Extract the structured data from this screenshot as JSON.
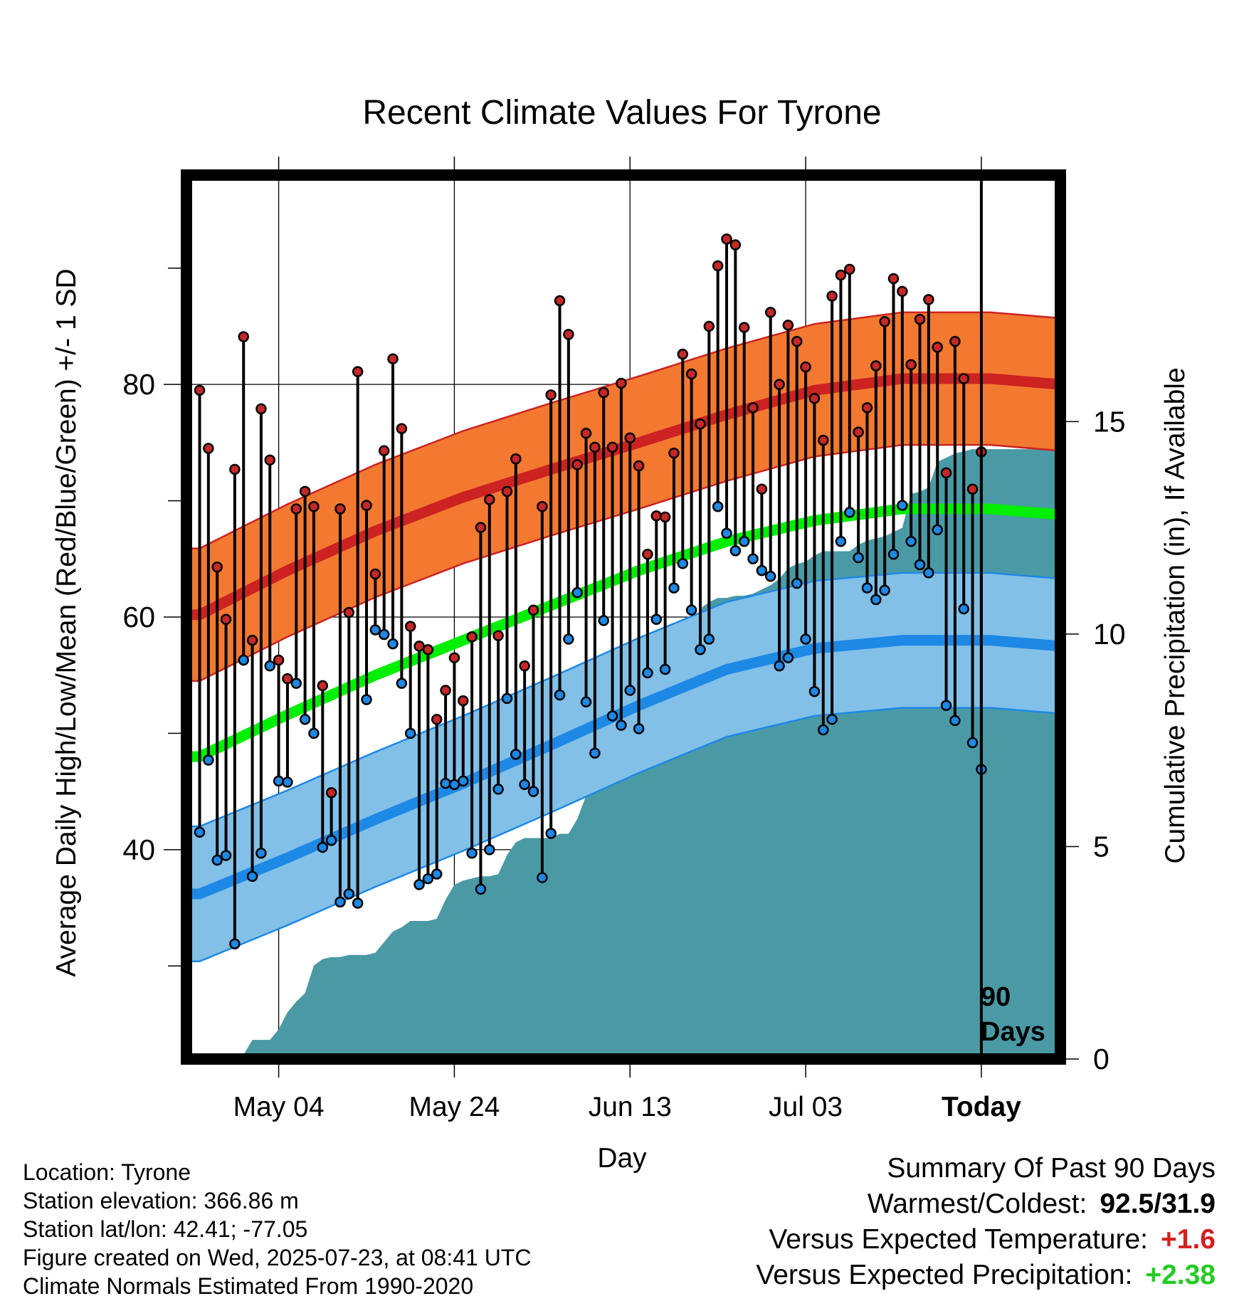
{
  "chart_data": {
    "type": "line",
    "title": "Recent Climate Values For Tyrone",
    "xlabel": "Day",
    "ylabel": "Average Daily High/Low/Mean (Red/Blue/Green) +/- 1 SD",
    "y2label": "Cumulative Precipitation (in), If Available",
    "x_tick_labels": [
      "May 04",
      "May 24",
      "Jun 13",
      "Jul 03",
      "Today"
    ],
    "x_tick_days": [
      9,
      29,
      49,
      69,
      89
    ],
    "x_range_days": [
      -1.5,
      98
    ],
    "ylim": [
      22,
      98
    ],
    "y_ticks": [
      30,
      40,
      50,
      60,
      70,
      80,
      90
    ],
    "y_tick_labels": [
      "40",
      "60",
      "80"
    ],
    "y2lim": [
      0,
      20.8
    ],
    "y2_tick_labels": [
      "0",
      "5",
      "10",
      "15"
    ],
    "y2_ticks": [
      0,
      5,
      10,
      15
    ],
    "grid": true,
    "today_marker_label": [
      "90",
      "Days"
    ],
    "day_start": "2025-04-25",
    "series": [
      {
        "name": "Daily High",
        "color": "#cc2222",
        "values": [
          79.5,
          74.5,
          64.3,
          59.8,
          72.7,
          84.1,
          58.0,
          77.9,
          73.5,
          56.3,
          54.7,
          69.3,
          70.8,
          69.5,
          54.1,
          44.9,
          69.3,
          60.4,
          81.1,
          69.6,
          63.7,
          74.3,
          82.2,
          76.2,
          59.2,
          57.5,
          57.2,
          51.2,
          53.7,
          56.5,
          52.8,
          58.3,
          67.7,
          70.1,
          58.4,
          70.8,
          73.6,
          55.8,
          60.6,
          69.5,
          79.1,
          87.2,
          84.3,
          73.1,
          75.8,
          74.6,
          79.3,
          74.6,
          80.1,
          75.4,
          73.0,
          65.4,
          68.7,
          68.6,
          74.1,
          82.6,
          80.9,
          76.6,
          85.0,
          90.2,
          92.5,
          92.0,
          84.9,
          78.0,
          71.0,
          86.2,
          80.0,
          85.1,
          83.7,
          81.5,
          78.8,
          75.2,
          87.6,
          89.4,
          89.9,
          75.9,
          78.0,
          81.6,
          85.4,
          89.1,
          88.0,
          81.7,
          85.6,
          87.3,
          83.2,
          72.4,
          83.7,
          80.5,
          71.0,
          74.2
        ]
      },
      {
        "name": "Daily Low",
        "color": "#1e88e5",
        "values": [
          41.5,
          47.7,
          39.1,
          39.5,
          31.9,
          56.3,
          37.7,
          39.7,
          55.8,
          45.9,
          45.8,
          54.3,
          51.2,
          50.0,
          40.2,
          40.8,
          35.5,
          36.2,
          35.4,
          52.9,
          58.9,
          58.5,
          57.7,
          54.3,
          50.0,
          37.0,
          37.5,
          37.9,
          45.7,
          45.6,
          45.9,
          39.7,
          36.6,
          40.0,
          45.2,
          53.0,
          48.2,
          45.6,
          45.0,
          37.6,
          41.4,
          53.3,
          58.1,
          62.1,
          52.7,
          48.3,
          59.7,
          51.5,
          50.7,
          53.7,
          50.4,
          55.2,
          59.8,
          55.5,
          62.5,
          64.6,
          60.6,
          57.2,
          58.1,
          69.5,
          67.2,
          65.7,
          66.5,
          65.0,
          64.0,
          63.5,
          55.8,
          56.5,
          62.9,
          58.1,
          53.6,
          50.3,
          51.2,
          66.5,
          69.0,
          65.1,
          62.5,
          61.5,
          62.3,
          65.4,
          69.6,
          66.5,
          64.5,
          63.8,
          67.5,
          52.4,
          51.1,
          60.7,
          49.2,
          46.9
        ]
      },
      {
        "name": "Normal High",
        "color": "#cc2222",
        "values_by_day": [
          [
            0,
            60.2
          ],
          [
            10,
            64.0
          ],
          [
            20,
            67.4
          ],
          [
            30,
            70.3
          ],
          [
            40,
            72.7
          ],
          [
            50,
            75.0
          ],
          [
            60,
            77.4
          ],
          [
            70,
            79.5
          ],
          [
            80,
            80.5
          ],
          [
            90,
            80.5
          ],
          [
            98,
            80.0
          ]
        ],
        "sd_band": 5.7,
        "band_color": "#f37930"
      },
      {
        "name": "Normal Mean",
        "color": "#00ee00",
        "values_by_day": [
          [
            0,
            48.0
          ],
          [
            10,
            51.6
          ],
          [
            20,
            55.0
          ],
          [
            30,
            58.0
          ],
          [
            40,
            61.0
          ],
          [
            50,
            64.0
          ],
          [
            60,
            66.5
          ],
          [
            70,
            68.3
          ],
          [
            80,
            69.3
          ],
          [
            90,
            69.3
          ],
          [
            98,
            68.8
          ]
        ],
        "sd_band": 0
      },
      {
        "name": "Normal Low",
        "color": "#1e88e5",
        "values_by_day": [
          [
            0,
            36.2
          ],
          [
            10,
            39.3
          ],
          [
            20,
            42.6
          ],
          [
            30,
            45.7
          ],
          [
            40,
            49.0
          ],
          [
            50,
            52.4
          ],
          [
            60,
            55.5
          ],
          [
            70,
            57.3
          ],
          [
            80,
            58.0
          ],
          [
            90,
            58.0
          ],
          [
            98,
            57.5
          ]
        ],
        "sd_band": 5.8,
        "band_color": "#82c0e8"
      },
      {
        "name": "Cumulative Precipitation",
        "color": "#4a9aa5",
        "axis": "y2",
        "values_by_day": [
          [
            0,
            0
          ],
          [
            1,
            0
          ],
          [
            2,
            0.05
          ],
          [
            3,
            0.05
          ],
          [
            4,
            0.1
          ],
          [
            5,
            0.1
          ],
          [
            6,
            0.45
          ],
          [
            7,
            0.45
          ],
          [
            8,
            0.45
          ],
          [
            9,
            0.7
          ],
          [
            10,
            1.1
          ],
          [
            11,
            1.35
          ],
          [
            12,
            1.55
          ],
          [
            13,
            2.2
          ],
          [
            14,
            2.35
          ],
          [
            15,
            2.4
          ],
          [
            16,
            2.4
          ],
          [
            17,
            2.45
          ],
          [
            18,
            2.45
          ],
          [
            19,
            2.45
          ],
          [
            20,
            2.5
          ],
          [
            21,
            2.75
          ],
          [
            22,
            3.0
          ],
          [
            23,
            3.1
          ],
          [
            24,
            3.25
          ],
          [
            25,
            3.25
          ],
          [
            26,
            3.25
          ],
          [
            27,
            3.3
          ],
          [
            28,
            3.75
          ],
          [
            29,
            4.1
          ],
          [
            30,
            4.2
          ],
          [
            31,
            4.25
          ],
          [
            32,
            4.3
          ],
          [
            33,
            4.3
          ],
          [
            34,
            4.35
          ],
          [
            35,
            4.8
          ],
          [
            36,
            5.1
          ],
          [
            37,
            5.2
          ],
          [
            38,
            5.2
          ],
          [
            39,
            5.2
          ],
          [
            40,
            5.2
          ],
          [
            41,
            5.3
          ],
          [
            42,
            5.3
          ],
          [
            43,
            5.65
          ],
          [
            44,
            6.2
          ],
          [
            45,
            6.45
          ],
          [
            46,
            7.2
          ],
          [
            47,
            8.1
          ],
          [
            48,
            8.9
          ],
          [
            49,
            9.0
          ],
          [
            50,
            9.0
          ],
          [
            51,
            9.15
          ],
          [
            52,
            9.2
          ],
          [
            53,
            9.25
          ],
          [
            54,
            9.3
          ],
          [
            55,
            9.6
          ],
          [
            56,
            10.1
          ],
          [
            57,
            10.6
          ],
          [
            58,
            10.75
          ],
          [
            59,
            10.85
          ],
          [
            60,
            10.85
          ],
          [
            61,
            10.9
          ],
          [
            62,
            10.9
          ],
          [
            63,
            10.95
          ],
          [
            64,
            11.05
          ],
          [
            65,
            11.15
          ],
          [
            66,
            11.3
          ],
          [
            67,
            11.55
          ],
          [
            68,
            11.65
          ],
          [
            69,
            11.7
          ],
          [
            70,
            11.85
          ],
          [
            71,
            11.95
          ],
          [
            72,
            11.95
          ],
          [
            73,
            11.95
          ],
          [
            74,
            11.95
          ],
          [
            75,
            12.1
          ],
          [
            76,
            12.2
          ],
          [
            77,
            12.25
          ],
          [
            78,
            12.3
          ],
          [
            79,
            12.4
          ],
          [
            80,
            12.5
          ],
          [
            81,
            13.3
          ],
          [
            82,
            13.35
          ],
          [
            83,
            13.45
          ],
          [
            84,
            14.05
          ],
          [
            85,
            14.15
          ],
          [
            86,
            14.25
          ],
          [
            87,
            14.3
          ],
          [
            88,
            14.35
          ],
          [
            89,
            14.35
          ],
          [
            98,
            14.35
          ]
        ]
      }
    ]
  },
  "info": {
    "location": "Location: Tyrone",
    "elevation": "Station elevation: 366.86 m",
    "latlon": "Station lat/lon: 42.41; -77.05",
    "created": "Figure created on Wed, 2025-07-23, at 08:41 UTC",
    "normals": "Climate Normals Estimated From 1990-2020"
  },
  "summary": {
    "heading": "Summary Of Past 90 Days",
    "warmest_coldest_label": "Warmest/Coldest:",
    "warmest_coldest_value": "92.5/31.9",
    "temp_label": "Versus Expected Temperature:",
    "temp_value": "+1.6",
    "temp_color": "#d42020",
    "precip_label": "Versus Expected Precipitation:",
    "precip_value": "+2.38",
    "precip_color": "#22cc22"
  }
}
